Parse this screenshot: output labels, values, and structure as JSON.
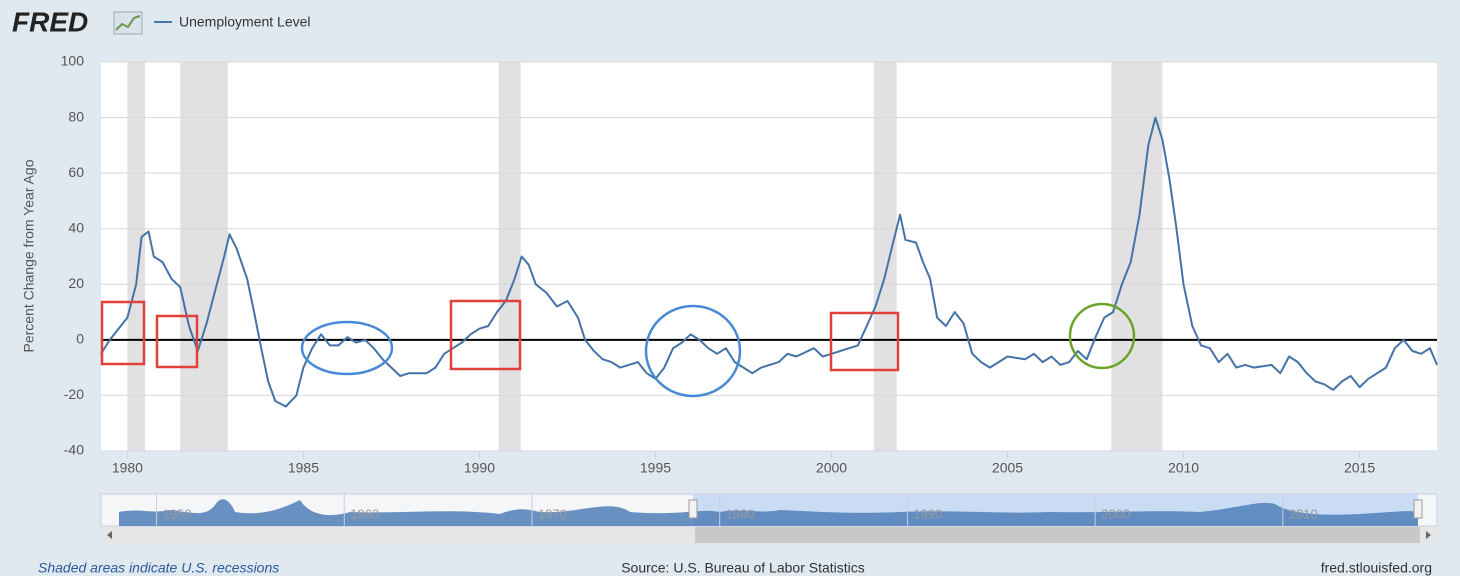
{
  "chart_data": {
    "type": "line",
    "logo": "FRED",
    "ylabel": "Percent Change from Year Ago",
    "footer_left": "Shaded areas indicate U.S. recessions",
    "footer_center": "Source: U.S. Bureau of Labor Statistics",
    "footer_right": "fred.stlouisfed.org",
    "xlim": [
      1979.25,
      2017.2
    ],
    "ylim": [
      -40,
      100
    ],
    "xticks": [
      1980,
      1985,
      1990,
      1995,
      2000,
      2005,
      2010,
      2015
    ],
    "yticks": [
      -40,
      -20,
      0,
      20,
      40,
      60,
      80,
      100
    ],
    "grid": true,
    "hline": 0,
    "recessions": [
      [
        1980.0,
        1980.5
      ],
      [
        1981.5,
        1982.85
      ],
      [
        1990.55,
        1991.17
      ],
      [
        2001.2,
        2001.85
      ],
      [
        2007.95,
        2009.4
      ]
    ],
    "x": [
      1979.25,
      1979.5,
      1979.75,
      1980.0,
      1980.25,
      1980.4,
      1980.6,
      1980.75,
      1981.0,
      1981.25,
      1981.5,
      1981.75,
      1982.0,
      1982.25,
      1982.5,
      1982.75,
      1982.9,
      1983.1,
      1983.4,
      1983.6,
      1983.8,
      1984.0,
      1984.2,
      1984.5,
      1984.8,
      1985.0,
      1985.25,
      1985.5,
      1985.75,
      1986.0,
      1986.25,
      1986.5,
      1986.75,
      1987.0,
      1987.25,
      1987.5,
      1987.75,
      1988.0,
      1988.5,
      1988.75,
      1989.0,
      1989.25,
      1989.5,
      1989.75,
      1990.0,
      1990.25,
      1990.5,
      1990.75,
      1991.0,
      1991.2,
      1991.4,
      1991.6,
      1991.9,
      1992.2,
      1992.5,
      1992.8,
      1993.0,
      1993.25,
      1993.5,
      1993.75,
      1994.0,
      1994.5,
      1994.75,
      1995.0,
      1995.25,
      1995.5,
      1995.75,
      1996.0,
      1996.25,
      1996.5,
      1996.75,
      1997.0,
      1997.25,
      1997.5,
      1997.75,
      1998.0,
      1998.5,
      1998.75,
      1999.0,
      1999.5,
      1999.75,
      2000.0,
      2000.25,
      2000.5,
      2000.75,
      2001.0,
      2001.25,
      2001.5,
      2001.75,
      2001.95,
      2002.1,
      2002.4,
      2002.6,
      2002.8,
      2003.0,
      2003.25,
      2003.5,
      2003.75,
      2004.0,
      2004.25,
      2004.5,
      2004.75,
      2005.0,
      2005.5,
      2005.75,
      2006.0,
      2006.25,
      2006.5,
      2006.75,
      2007.0,
      2007.25,
      2007.5,
      2007.75,
      2008.0,
      2008.25,
      2008.5,
      2008.75,
      2009.0,
      2009.2,
      2009.4,
      2009.6,
      2009.8,
      2010.0,
      2010.25,
      2010.5,
      2010.75,
      2011.0,
      2011.25,
      2011.5,
      2011.75,
      2012.0,
      2012.5,
      2012.75,
      2013.0,
      2013.25,
      2013.5,
      2013.75,
      2014.0,
      2014.25,
      2014.5,
      2014.75,
      2015.0,
      2015.25,
      2015.5,
      2015.75,
      2016.0,
      2016.25,
      2016.5,
      2016.75,
      2017.0,
      2017.2
    ],
    "series": [
      {
        "name": "Unemployment Level",
        "color": "#4572a7",
        "values": [
          -5,
          0,
          4,
          8,
          20,
          37,
          39,
          30,
          28,
          22,
          19,
          5,
          -4,
          6,
          18,
          30,
          38,
          33,
          22,
          10,
          -3,
          -15,
          -22,
          -24,
          -20,
          -10,
          -3,
          2,
          -2,
          -2,
          1,
          -1,
          0,
          -3,
          -7,
          -10,
          -13,
          -12,
          -12,
          -10,
          -5,
          -3,
          -1,
          2,
          4,
          5,
          10,
          14,
          22,
          30,
          27,
          20,
          17,
          12,
          14,
          8,
          0,
          -4,
          -7,
          -8,
          -10,
          -8,
          -12,
          -14,
          -10,
          -3,
          -1,
          2,
          0,
          -3,
          -5,
          -3,
          -8,
          -10,
          -12,
          -10,
          -8,
          -5,
          -6,
          -3,
          -6,
          -5,
          -4,
          -3,
          -2,
          5,
          12,
          22,
          35,
          45,
          36,
          35,
          28,
          22,
          8,
          5,
          10,
          6,
          -5,
          -8,
          -10,
          -8,
          -6,
          -7,
          -5,
          -8,
          -6,
          -9,
          -8,
          -4,
          -7,
          1,
          8,
          10,
          20,
          28,
          45,
          70,
          80,
          72,
          58,
          40,
          20,
          5,
          -2,
          -3,
          -8,
          -5,
          -10,
          -9,
          -10,
          -9,
          -12,
          -6,
          -8,
          -12,
          -15,
          -16,
          -18,
          -15,
          -13,
          -17,
          -14,
          -12,
          -10,
          -3,
          0,
          -4,
          -5,
          -3,
          -9
        ]
      }
    ],
    "navigator": {
      "xlim": [
        1948,
        2017.2
      ],
      "xticks": [
        1950,
        1960,
        1970,
        1980,
        1990,
        2000,
        2010
      ]
    }
  }
}
